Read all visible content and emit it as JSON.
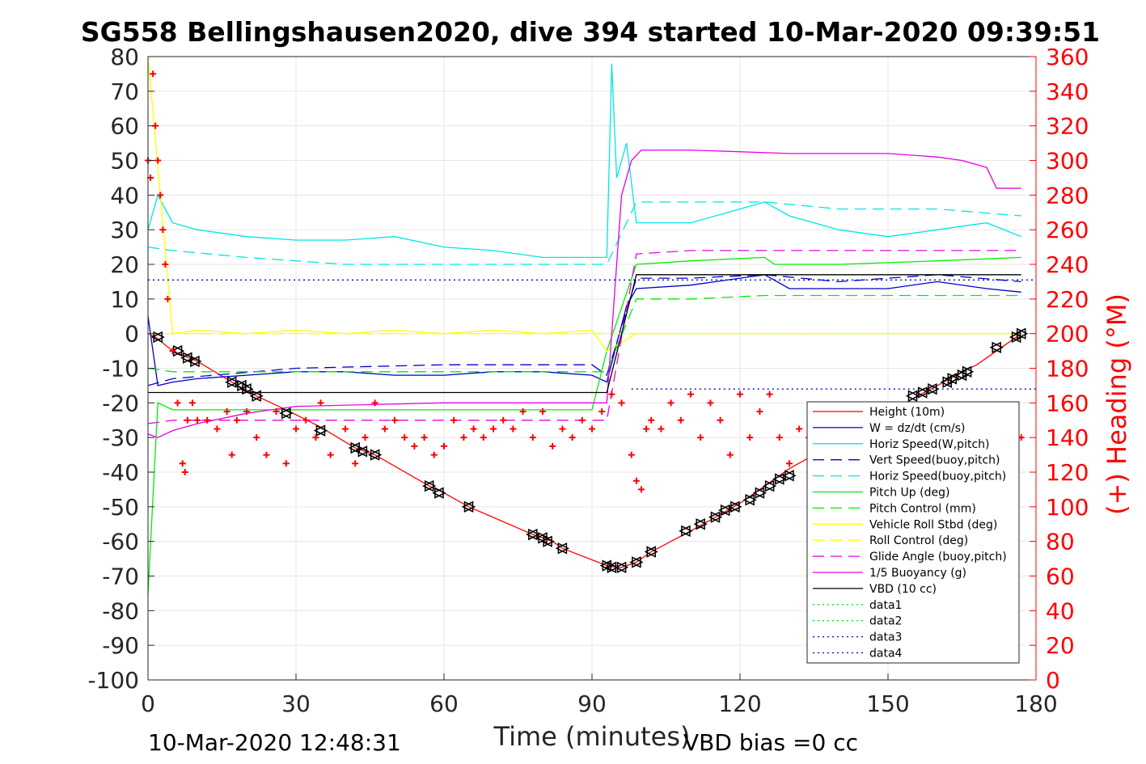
{
  "title": "SG558 Bellingshausen2020, dive 394 started 10-Mar-2020 09:39:51",
  "footer": {
    "end_time": "10-Mar-2020 12:48:31",
    "vbd_bias": "VBD bias =0 cc"
  },
  "chart_data": {
    "type": "line",
    "xlabel": "Time (minutes)",
    "ylabel_left": "",
    "ylabel_right": "(+) Heading (°M)",
    "xlim": [
      0,
      180
    ],
    "ylim_left": [
      -100,
      80
    ],
    "ylim_right": [
      0,
      360
    ],
    "xticks": [
      0,
      30,
      60,
      90,
      120,
      150,
      180
    ],
    "yticks_left": [
      80,
      70,
      60,
      50,
      40,
      30,
      20,
      10,
      0,
      -10,
      -20,
      -30,
      -40,
      -50,
      -60,
      -70,
      -80,
      -90,
      -100
    ],
    "yticks_right": [
      360,
      340,
      320,
      300,
      280,
      260,
      240,
      220,
      200,
      180,
      160,
      140,
      120,
      100,
      80,
      60,
      40,
      20,
      0
    ],
    "grid": true,
    "legend_position": "bottom-right",
    "series": [
      {
        "name": "Height (10m)",
        "color": "#ff0000",
        "style": "solid",
        "x": [
          0,
          1.5,
          5,
          10,
          17,
          22,
          28,
          35,
          42,
          46,
          57,
          60,
          65,
          78,
          82,
          84,
          93,
          95,
          96,
          99,
          102,
          110,
          115,
          120,
          125,
          130,
          140,
          150,
          156,
          160,
          165,
          168,
          173,
          177
        ],
        "y": [
          0,
          -1,
          -5,
          -8,
          -14,
          -18,
          -22,
          -27,
          -33,
          -35,
          -44,
          -46,
          -50,
          -58,
          -60,
          -62,
          -67,
          -67.5,
          -67.5,
          -66,
          -63,
          -57,
          -53,
          -49,
          -44,
          -39,
          -31,
          -23,
          -18,
          -15,
          -11,
          -9,
          -4,
          0
        ]
      },
      {
        "name": "W = dz/dt (cm/s)",
        "color": "#0000cc",
        "style": "solid",
        "x": [
          0,
          2,
          5,
          10,
          20,
          30,
          40,
          50,
          60,
          70,
          80,
          90,
          93,
          95,
          97,
          99,
          110,
          120,
          125,
          130,
          140,
          150,
          160,
          170,
          177
        ],
        "y": [
          5,
          -15,
          -14,
          -13,
          -12,
          -11,
          -11,
          -12,
          -12,
          -11,
          -11,
          -12,
          -14,
          -3,
          8,
          13,
          14,
          16,
          17,
          13,
          13,
          13,
          15,
          13,
          12
        ]
      },
      {
        "name": "Horiz Speed(W,pitch)",
        "color": "#00e5e5",
        "style": "solid",
        "x": [
          0,
          2,
          5,
          10,
          20,
          30,
          40,
          50,
          60,
          70,
          80,
          90,
          93,
          94,
          95,
          97,
          99,
          110,
          120,
          125,
          130,
          140,
          150,
          160,
          170,
          177
        ],
        "y": [
          30,
          40,
          32,
          30,
          28,
          27,
          27,
          28,
          25,
          24,
          22,
          22,
          22,
          78,
          45,
          55,
          32,
          32,
          36,
          38,
          34,
          30,
          28,
          30,
          32,
          28
        ]
      },
      {
        "name": "Vert Speed(buoy,pitch)",
        "color": "#0000cc",
        "style": "dash",
        "x": [
          0,
          5,
          30,
          60,
          90,
          93,
          99,
          110,
          125,
          140,
          160,
          177
        ],
        "y": [
          -15,
          -13,
          -10,
          -9,
          -9,
          -12,
          16,
          16,
          17,
          15,
          17,
          15
        ]
      },
      {
        "name": "Horiz Speed(buoy,pitch)",
        "color": "#00e5e5",
        "style": "dash",
        "x": [
          0,
          5,
          20,
          40,
          60,
          80,
          90,
          93,
          99,
          110,
          125,
          140,
          160,
          177
        ],
        "y": [
          25,
          24,
          22,
          20,
          20,
          20,
          20,
          20,
          38,
          38,
          38,
          36,
          36,
          34
        ]
      },
      {
        "name": "Pitch Up (deg)",
        "color": "#00ee00",
        "style": "solid",
        "x": [
          0,
          2,
          5,
          30,
          60,
          90,
          93,
          99,
          110,
          125,
          127,
          140,
          160,
          177
        ],
        "y": [
          -75,
          -20,
          -22,
          -22,
          -22,
          -22,
          -5,
          20,
          21,
          22,
          20,
          20,
          21,
          22
        ]
      },
      {
        "name": "Pitch Control (mm)",
        "color": "#00ee00",
        "style": "dash",
        "x": [
          0,
          5,
          30,
          60,
          90,
          93,
          99,
          110,
          125,
          140,
          160,
          177
        ],
        "y": [
          -10,
          -11,
          -11,
          -11,
          -11,
          -11,
          10,
          10,
          11,
          11,
          11,
          11
        ]
      },
      {
        "name": "Vehicle Roll Stbd (deg)",
        "color": "#ffff00",
        "style": "solid",
        "x": [
          0,
          5,
          10,
          20,
          30,
          40,
          50,
          60,
          70,
          80,
          90,
          93,
          99,
          110,
          120,
          130,
          140,
          150,
          160,
          170,
          177
        ],
        "y": [
          80,
          0,
          1,
          0,
          1,
          0,
          1,
          0,
          1,
          0,
          1,
          -5,
          0,
          0,
          0,
          0,
          0,
          0,
          0,
          0,
          0
        ]
      },
      {
        "name": "Roll Control (deg)",
        "color": "#ffff00",
        "style": "dash",
        "x": [
          0,
          30,
          60,
          90,
          120,
          150,
          177
        ],
        "y": [
          0,
          0,
          0,
          0,
          0,
          0,
          0
        ]
      },
      {
        "name": "Glide Angle (buoy,pitch)",
        "color": "#e600e6",
        "style": "dash",
        "x": [
          0,
          5,
          30,
          60,
          90,
          93,
          99,
          110,
          125,
          140,
          160,
          177
        ],
        "y": [
          -26,
          -25,
          -25,
          -25,
          -25,
          -25,
          23,
          24,
          24,
          24,
          24,
          24
        ]
      },
      {
        "name": "1/5 Buoyancy (g)",
        "color": "#e600e6",
        "style": "solid",
        "x": [
          0,
          2,
          5,
          10,
          20,
          30,
          45,
          60,
          75,
          90,
          93,
          96,
          98,
          100,
          110,
          130,
          150,
          160,
          165,
          170,
          172,
          177
        ],
        "y": [
          -29,
          -30,
          -28,
          -26,
          -23,
          -21,
          -20.5,
          -20,
          -20,
          -20,
          -20,
          40,
          50,
          53,
          53,
          52,
          52,
          51,
          50,
          48,
          42,
          42
        ]
      },
      {
        "name": "VBD (10 cc)",
        "color": "#000000",
        "style": "solid",
        "x": [
          0,
          1,
          2,
          5,
          30,
          60,
          90,
          93,
          99,
          110,
          140,
          177
        ],
        "y": [
          -17,
          -17,
          -17,
          -17,
          -17,
          -17,
          -17,
          -17,
          17,
          17,
          17,
          17
        ]
      },
      {
        "name": "data1",
        "color": "#00ee00",
        "style": "dot",
        "x": [],
        "y": []
      },
      {
        "name": "data2",
        "color": "#00ee00",
        "style": "dot",
        "x": [],
        "y": []
      },
      {
        "name": "data3",
        "color": "#0000cc",
        "style": "dot",
        "x": [
          0,
          180
        ],
        "y": [
          15.5,
          15.5
        ]
      },
      {
        "name": "data4",
        "color": "#0000cc",
        "style": "dot",
        "x": [
          98,
          180
        ],
        "y": [
          -16,
          -16
        ]
      }
    ],
    "heading_series": {
      "name": "Heading",
      "color": "#ff0000",
      "marker": "+",
      "x": [
        0,
        0.5,
        1,
        1.5,
        2,
        2.5,
        3,
        3.5,
        4,
        5,
        6,
        7,
        7.5,
        8,
        9,
        10,
        12,
        14,
        16,
        17,
        18,
        20,
        22,
        24,
        26,
        28,
        30,
        32,
        34,
        35,
        37,
        40,
        42,
        44,
        46,
        48,
        50,
        52,
        54,
        56,
        58,
        60,
        62,
        64,
        66,
        68,
        70,
        72,
        74,
        76,
        78,
        80,
        82,
        84,
        86,
        88,
        90,
        92,
        94,
        96,
        98,
        99,
        100,
        101,
        102,
        104,
        106,
        108,
        110,
        112,
        114,
        116,
        118,
        120,
        122,
        124,
        126,
        128,
        130,
        132,
        134,
        136,
        138,
        140,
        142,
        144,
        146,
        150,
        155,
        160,
        165,
        170,
        175,
        177
      ],
      "y": [
        300,
        290,
        350,
        320,
        300,
        280,
        260,
        240,
        220,
        190,
        160,
        125,
        120,
        150,
        160,
        150,
        150,
        145,
        155,
        130,
        150,
        155,
        140,
        130,
        155,
        125,
        145,
        150,
        140,
        160,
        130,
        145,
        125,
        140,
        160,
        145,
        150,
        140,
        135,
        140,
        130,
        135,
        150,
        140,
        145,
        140,
        145,
        150,
        145,
        155,
        140,
        155,
        135,
        145,
        140,
        150,
        145,
        155,
        165,
        160,
        130,
        115,
        110,
        145,
        150,
        145,
        160,
        150,
        165,
        140,
        160,
        150,
        130,
        165,
        140,
        155,
        165,
        140,
        125,
        145,
        140,
        145,
        150,
        140,
        145,
        150,
        145,
        150,
        155,
        150,
        145,
        150,
        145,
        140
      ]
    },
    "events": {
      "name": "Height markers",
      "color": "#000000",
      "marker": "triangle",
      "x": [
        2,
        6,
        8,
        9.5,
        17,
        19,
        20,
        22,
        28,
        35,
        42,
        43.5,
        46,
        57,
        59,
        65,
        78,
        80,
        81,
        84,
        93,
        94,
        96,
        99,
        102,
        109,
        112,
        115,
        117,
        119,
        122,
        124,
        126,
        128,
        130,
        155,
        157,
        159,
        162,
        163,
        165,
        166,
        172,
        176,
        177
      ],
      "y": [
        -1,
        -5,
        -7,
        -8,
        -14,
        -15,
        -16,
        -18,
        -23,
        -28,
        -33,
        -34,
        -35,
        -44,
        -46,
        -50,
        -58,
        -59,
        -60,
        -62,
        -67,
        -67.5,
        -67.5,
        -66,
        -63,
        -57,
        -55,
        -53,
        -51,
        -50,
        -48,
        -46,
        -44,
        -42,
        -41,
        -18,
        -17,
        -16,
        -14,
        -13,
        -12,
        -11,
        -4,
        -1,
        0
      ]
    }
  }
}
